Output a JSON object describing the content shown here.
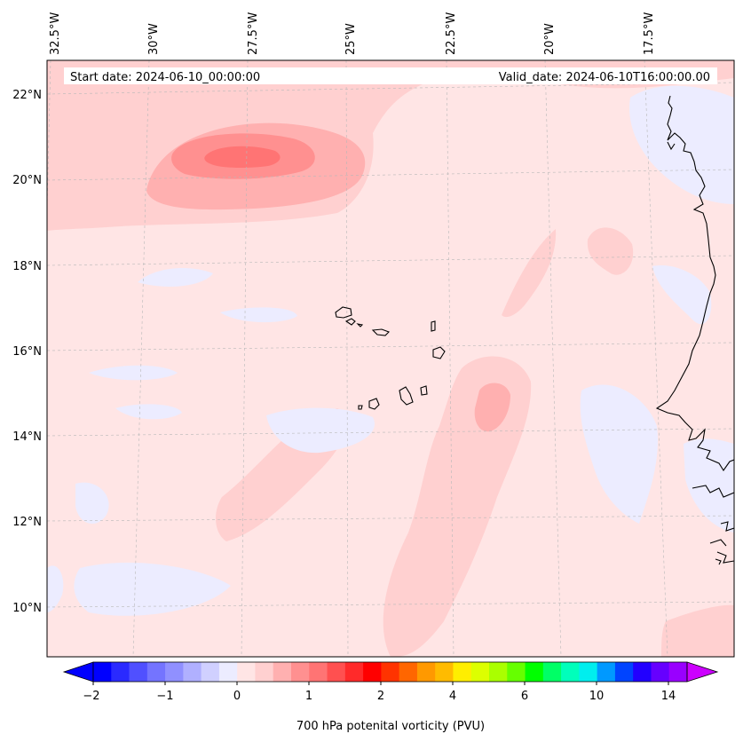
{
  "map": {
    "start_label": "Start date: 2024-06-10_00:00:00",
    "valid_label": "Valid_date: 2024-06-10T16:00:00.00",
    "lon_labels": [
      "32.5°W",
      "30°W",
      "27.5°W",
      "25°W",
      "22.5°W",
      "20°W",
      "17.5°W"
    ],
    "lat_labels": [
      "22°N",
      "20°N",
      "18°N",
      "16°N",
      "14°N",
      "12°N",
      "10°N"
    ],
    "background_color": "#ffe5e5",
    "coast_color": "#000000"
  },
  "colorbar": {
    "label": "700 hPa potenital vorticity (PVU)",
    "tick_labels": [
      "−2",
      "−1",
      "0",
      "1",
      "2",
      "4",
      "6",
      "10",
      "14"
    ],
    "colors": [
      "#0000ff",
      "#2a2aff",
      "#5050ff",
      "#7474ff",
      "#9090ff",
      "#b0b0ff",
      "#d0d0ff",
      "#ececff",
      "#ffe5e5",
      "#ffd0d0",
      "#ffb0b0",
      "#ff9090",
      "#ff7474",
      "#ff5050",
      "#ff2a2a",
      "#ff0000",
      "#ff3300",
      "#ff6600",
      "#ff9900",
      "#ffbb00",
      "#ffee00",
      "#ddff00",
      "#aaff00",
      "#66ff00",
      "#00ff00",
      "#00ff66",
      "#00ffbb",
      "#00eeee",
      "#0099ff",
      "#0044ff",
      "#2200ff",
      "#6600ff",
      "#9900ff"
    ],
    "extend_low_color": "#0000ff",
    "extend_high_color": "#cc00ff"
  }
}
